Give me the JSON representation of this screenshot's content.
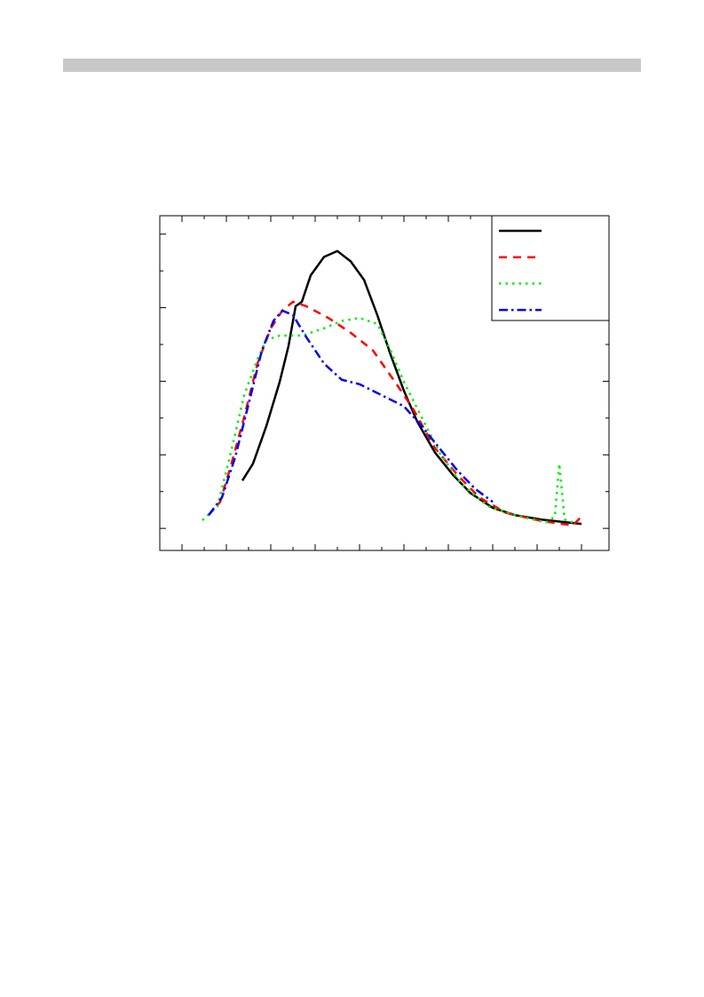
{
  "chart_data": {
    "type": "line",
    "xlim": [
      -0.5,
      9.62
    ],
    "ylim": [
      -0.3,
      4.25
    ],
    "xticks": [
      0,
      0.5,
      1,
      1.5,
      2,
      2.5,
      3,
      3.5,
      4,
      4.5,
      5,
      5.5,
      6,
      6.5,
      7,
      7.5,
      8,
      8.5,
      9
    ],
    "yticks": [
      0,
      0.5,
      1,
      1.5,
      2,
      2.5,
      3,
      3.5,
      4
    ],
    "legend": "upper right",
    "series": [
      {
        "color": "#000000",
        "dash": "solid",
        "x": [
          1.36,
          1.6,
          1.9,
          2.2,
          2.4,
          2.56,
          2.7,
          2.9,
          3.2,
          3.5,
          3.8,
          4.1,
          4.4,
          4.7,
          5.0,
          5.3,
          5.7,
          6.1,
          6.5,
          7.0,
          7.5,
          8.1,
          9.0
        ],
        "values": [
          0.65,
          0.88,
          1.39,
          1.99,
          2.48,
          3.02,
          3.08,
          3.44,
          3.69,
          3.77,
          3.63,
          3.38,
          2.9,
          2.36,
          1.87,
          1.45,
          1.03,
          0.73,
          0.48,
          0.28,
          0.18,
          0.12,
          0.06
        ]
      },
      {
        "color": "#ff0000",
        "dash": "dashed",
        "x": [
          0.6,
          0.86,
          1.1,
          1.4,
          1.7,
          2.0,
          2.26,
          2.5,
          2.8,
          3.3,
          3.8,
          4.3,
          4.8,
          5.2,
          5.7,
          6.2,
          6.7,
          7.3,
          8.1,
          8.8,
          9.0
        ],
        "values": [
          0.18,
          0.36,
          0.85,
          1.51,
          2.24,
          2.72,
          2.96,
          3.08,
          3.02,
          2.86,
          2.66,
          2.42,
          1.99,
          1.63,
          1.09,
          0.73,
          0.42,
          0.21,
          0.1,
          0.04,
          0.16
        ]
      },
      {
        "color": "#00ee00",
        "dash": "dotted",
        "x": [
          0.46,
          0.8,
          1.1,
          1.4,
          1.7,
          1.9,
          2.2,
          2.7,
          3.2,
          3.6,
          4.0,
          4.4,
          4.7,
          5.0,
          5.4,
          5.8,
          6.3,
          6.9,
          7.5,
          8.2,
          8.4,
          8.5,
          8.62,
          8.9
        ],
        "values": [
          0.11,
          0.3,
          1.03,
          1.81,
          2.3,
          2.56,
          2.62,
          2.62,
          2.72,
          2.82,
          2.86,
          2.78,
          2.42,
          1.99,
          1.51,
          1.03,
          0.6,
          0.3,
          0.18,
          0.08,
          0.16,
          0.88,
          0.12,
          0.06
        ]
      },
      {
        "color": "#0000ee",
        "dash": "dashdot",
        "x": [
          0.6,
          0.9,
          1.2,
          1.5,
          1.8,
          2.06,
          2.26,
          2.5,
          2.8,
          3.2,
          3.6,
          4.0,
          4.5,
          5.0,
          5.4,
          5.8,
          6.2,
          6.6,
          7.0
        ],
        "values": [
          0.18,
          0.42,
          0.97,
          1.69,
          2.42,
          2.82,
          2.96,
          2.9,
          2.6,
          2.24,
          2.02,
          1.96,
          1.81,
          1.66,
          1.39,
          1.09,
          0.79,
          0.54,
          0.36
        ]
      }
    ]
  }
}
